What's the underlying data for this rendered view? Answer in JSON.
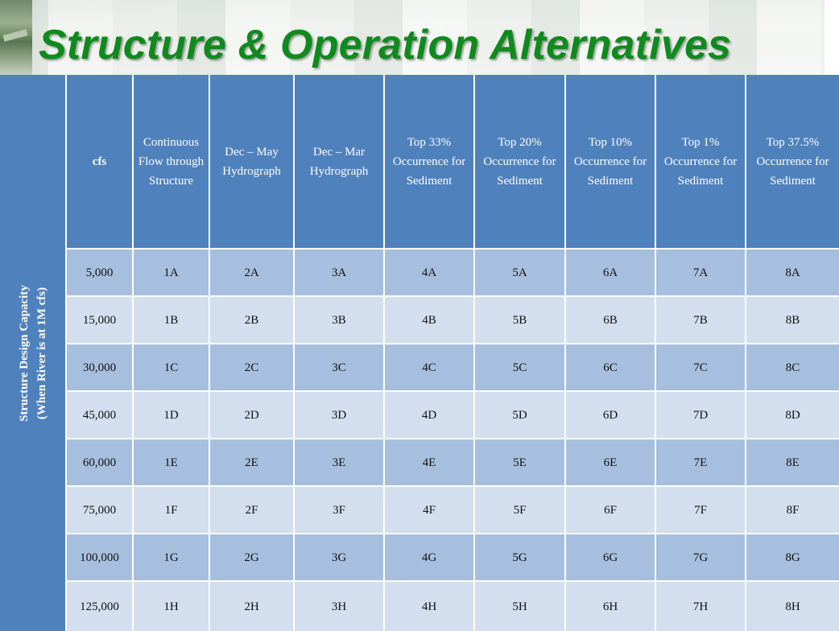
{
  "slide": {
    "title": "Structure & Operation Alternatives"
  },
  "table": {
    "side_label_line1": "Structure Design Capacity",
    "side_label_line2": "(When River is at 1M cfs)",
    "headers": [
      "cfs",
      "Continuous Flow through Structure",
      "Dec – May Hydrograph",
      "Dec – Mar Hydrograph",
      "Top 33% Occurrence for Sediment",
      "Top 20% Occurrence for Sediment",
      "Top 10% Occurrence for Sediment",
      "Top 1% Occurrence for Sediment",
      "Top 37.5% Occurrence for Sediment"
    ],
    "rows": [
      [
        "5,000",
        "1A",
        "2A",
        "3A",
        "4A",
        "5A",
        "6A",
        "7A",
        "8A"
      ],
      [
        "15,000",
        "1B",
        "2B",
        "3B",
        "4B",
        "5B",
        "6B",
        "7B",
        "8B"
      ],
      [
        "30,000",
        "1C",
        "2C",
        "3C",
        "4C",
        "5C",
        "6C",
        "7C",
        "8C"
      ],
      [
        "45,000",
        "1D",
        "2D",
        "3D",
        "4D",
        "5D",
        "6D",
        "7D",
        "8D"
      ],
      [
        "60,000",
        "1E",
        "2E",
        "3E",
        "4E",
        "5E",
        "6E",
        "7E",
        "8E"
      ],
      [
        "75,000",
        "1F",
        "2F",
        "3F",
        "4F",
        "5F",
        "6F",
        "7F",
        "8F"
      ],
      [
        "100,000",
        "1G",
        "2G",
        "3G",
        "4G",
        "5G",
        "6G",
        "7G",
        "8G"
      ],
      [
        "125,000",
        "1H",
        "2H",
        "3H",
        "4H",
        "5H",
        "6H",
        "7H",
        "8H"
      ]
    ]
  },
  "colors": {
    "title": "#0f8a1d",
    "header": "#4f81bd",
    "row_dark": "#a7bfde",
    "row_light": "#d3dfee"
  }
}
